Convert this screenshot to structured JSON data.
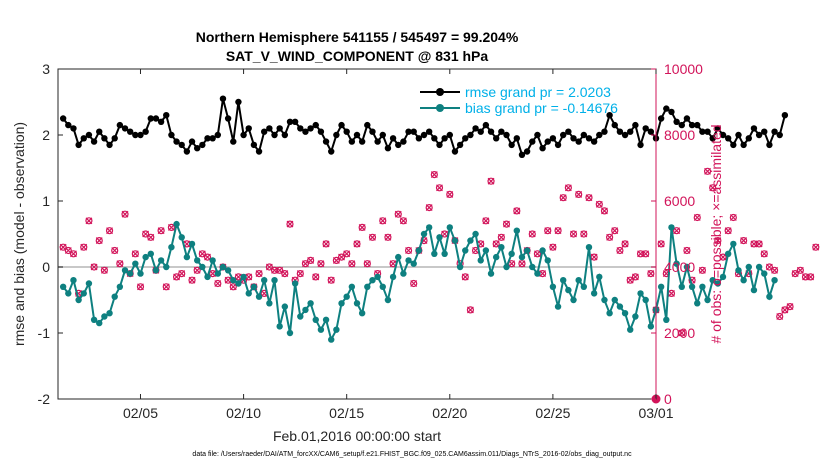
{
  "chart_data": {
    "type": "line",
    "title": "Northern Hemisphere 541155 / 545497 = 99.204%",
    "subtitle": "SAT_V_WIND_COMPONENT @ 831 hPa",
    "xlabel": "Feb.01,2016 00:00:00 start",
    "ylabel_left": "rmse and bias (model - observation)",
    "ylabel_right": "# of obs: o=possible; ×=assimilated",
    "footnote": "data file: /Users/raeder/DAI/ATM_forcXX/CAM6_setup/f.e21.FHIST_BGC.f09_025.CAM6assim.011/Diags_NTrS_2016-02/obs_diag_output.nc",
    "xlim": [
      1.0,
      30.0
    ],
    "ylim_left": [
      -2,
      3
    ],
    "ylim_right": [
      0,
      10000
    ],
    "x_ticks": [
      5,
      10,
      15,
      20,
      25,
      30
    ],
    "x_tick_labels": [
      "02/05",
      "02/10",
      "02/15",
      "02/20",
      "02/25",
      "03/01"
    ],
    "y_left_ticks": [
      -2,
      -1,
      0,
      1,
      2,
      3
    ],
    "y_right_ticks": [
      0,
      2000,
      4000,
      6000,
      8000,
      10000
    ],
    "grid": false,
    "legend_location": "top-right",
    "colors": {
      "rmse": "#000000",
      "bias": "#0e8080",
      "obs": "#d2145a",
      "legend_text": "#00b0e8",
      "zero_line": "#c8c8c8"
    },
    "time_start": 1.25,
    "time_step": 0.25,
    "series": [
      {
        "name": "rmse grand pr = 2.0203",
        "axis": "left",
        "values": [
          2.25,
          2.15,
          2.1,
          1.85,
          1.95,
          2.0,
          1.9,
          2.05,
          1.95,
          1.85,
          1.95,
          2.15,
          2.1,
          2.05,
          2.0,
          2.0,
          2.05,
          2.25,
          2.25,
          2.2,
          2.3,
          2.0,
          1.9,
          1.85,
          1.75,
          1.9,
          1.8,
          1.85,
          1.95,
          1.95,
          2.0,
          2.55,
          2.25,
          1.9,
          2.5,
          2.0,
          2.1,
          1.85,
          1.75,
          2.05,
          2.1,
          2.0,
          2.1,
          2.0,
          2.2,
          2.2,
          2.1,
          2.05,
          2.1,
          2.15,
          2.05,
          1.9,
          1.75,
          2.0,
          2.15,
          2.05,
          1.9,
          2.0,
          1.9,
          2.15,
          2.05,
          1.9,
          2.0,
          1.8,
          1.95,
          1.85,
          1.9,
          2.05,
          2.05,
          1.95,
          2.0,
          2.05,
          1.95,
          1.85,
          1.95,
          2.0,
          1.75,
          1.85,
          1.95,
          2.0,
          2.1,
          2.05,
          2.15,
          2.05,
          1.95,
          2.05,
          2.0,
          1.85,
          1.95,
          1.7,
          1.75,
          1.9,
          2.0,
          1.8,
          1.9,
          1.95,
          1.85,
          2.0,
          2.05,
          1.95,
          1.9,
          2.0,
          1.95,
          1.9,
          2.0,
          2.05,
          2.3,
          2.15,
          2.05,
          2.0,
          2.05,
          2.15,
          1.85,
          2.1,
          2.05,
          1.95,
          2.25,
          2.4,
          2.35,
          2.2,
          2.15,
          2.25,
          2.15,
          2.15,
          2.05,
          2.05,
          1.95,
          2.1,
          2.0,
          1.95,
          1.85,
          2.0,
          1.85,
          1.95,
          2.1,
          2.0,
          2.05,
          1.85,
          2.05,
          2.0,
          2.3
        ]
      },
      {
        "name": "bias grand pr = -0.14676",
        "axis": "left",
        "values": [
          -0.3,
          -0.4,
          -0.2,
          -0.5,
          -0.4,
          -0.25,
          -0.8,
          -0.85,
          -0.75,
          -0.7,
          -0.45,
          -0.3,
          -0.05,
          -0.1,
          0.05,
          -0.1,
          0.15,
          0.2,
          -0.05,
          0.1,
          0.0,
          0.3,
          0.65,
          0.45,
          0.15,
          0.35,
          0.1,
          0.0,
          -0.15,
          0.1,
          -0.1,
          0.0,
          -0.05,
          -0.2,
          -0.25,
          -0.15,
          -0.4,
          -0.3,
          -0.45,
          -0.2,
          -0.55,
          -0.2,
          -0.9,
          -0.6,
          -1.0,
          -0.25,
          -0.75,
          -0.65,
          -0.55,
          -0.8,
          -0.95,
          -0.8,
          -1.1,
          -0.95,
          -0.55,
          -0.45,
          -0.3,
          -0.55,
          -0.7,
          -0.3,
          -0.2,
          -0.15,
          -0.3,
          -0.5,
          -0.15,
          0.15,
          -0.1,
          0.1,
          0.05,
          0.25,
          0.5,
          0.6,
          0.2,
          0.45,
          0.2,
          0.6,
          0.4,
          0.0,
          0.25,
          0.4,
          0.5,
          0.1,
          0.25,
          -0.1,
          0.15,
          0.3,
          0.0,
          0.2,
          0.55,
          0.15,
          0.25,
          0.0,
          -0.1,
          0.25,
          0.1,
          -0.3,
          -0.6,
          -0.2,
          -0.35,
          -0.5,
          -0.2,
          -0.3,
          0.3,
          -0.4,
          -0.15,
          -0.5,
          -0.7,
          -0.5,
          -0.6,
          -0.7,
          -0.95,
          -0.75,
          -0.4,
          -0.5,
          -0.9,
          -0.65,
          -0.3,
          -0.8,
          0.6,
          0.05,
          -0.3,
          0.0,
          -0.3,
          -0.55,
          -0.3,
          -0.5,
          -0.2,
          -0.25,
          -0.15,
          0.2,
          0.35,
          -0.05,
          -0.2,
          0.0,
          -0.35,
          0.0,
          -0.1,
          -0.45,
          -0.2
        ]
      },
      {
        "name": "# of obs possible/assimilated",
        "axis": "right",
        "values": [
          4600,
          4500,
          4400,
          3200,
          4600,
          5400,
          4000,
          4800,
          3900,
          5100,
          4500,
          4100,
          5600,
          3800,
          4400,
          3400,
          5000,
          4900,
          3900,
          5100,
          3400,
          5200,
          3700,
          3800,
          4700,
          3600,
          3900,
          4400,
          4300,
          3800,
          3500,
          4000,
          3600,
          3400,
          3700,
          3600,
          3700,
          3400,
          3800,
          3200,
          4000,
          3900,
          3900,
          3800,
          5300,
          3600,
          3800,
          4100,
          4200,
          3700,
          4100,
          4700,
          3600,
          4200,
          4300,
          4400,
          4100,
          4700,
          5200,
          4100,
          4900,
          3800,
          5400,
          4900,
          4100,
          5600,
          5400,
          4500,
          3500,
          4500,
          4800,
          5800,
          6800,
          6400,
          5000,
          6200,
          4800,
          4100,
          3700,
          2700,
          4500,
          4700,
          5400,
          6600,
          4700,
          4900,
          5300,
          4100,
          5700,
          4100,
          4500,
          5000,
          4400,
          3800,
          5100,
          4600,
          5100,
          6100,
          6400,
          5000,
          6200,
          5000,
          6100,
          4300,
          5900,
          5700,
          4900,
          5100,
          4500,
          4700,
          3600,
          3700,
          4400,
          4400,
          3800,
          2700,
          4700,
          3800,
          3200,
          5100,
          2000,
          4500,
          3600,
          5500,
          3900,
          6900,
          6400,
          4800,
          4300,
          5100,
          5500,
          3800,
          4800,
          3800,
          4700,
          4700,
          4400,
          4000,
          3900,
          2500,
          2700,
          2800,
          3800,
          3900,
          3700,
          3700,
          4600
        ]
      }
    ],
    "obs_final_zero_label": "0"
  }
}
